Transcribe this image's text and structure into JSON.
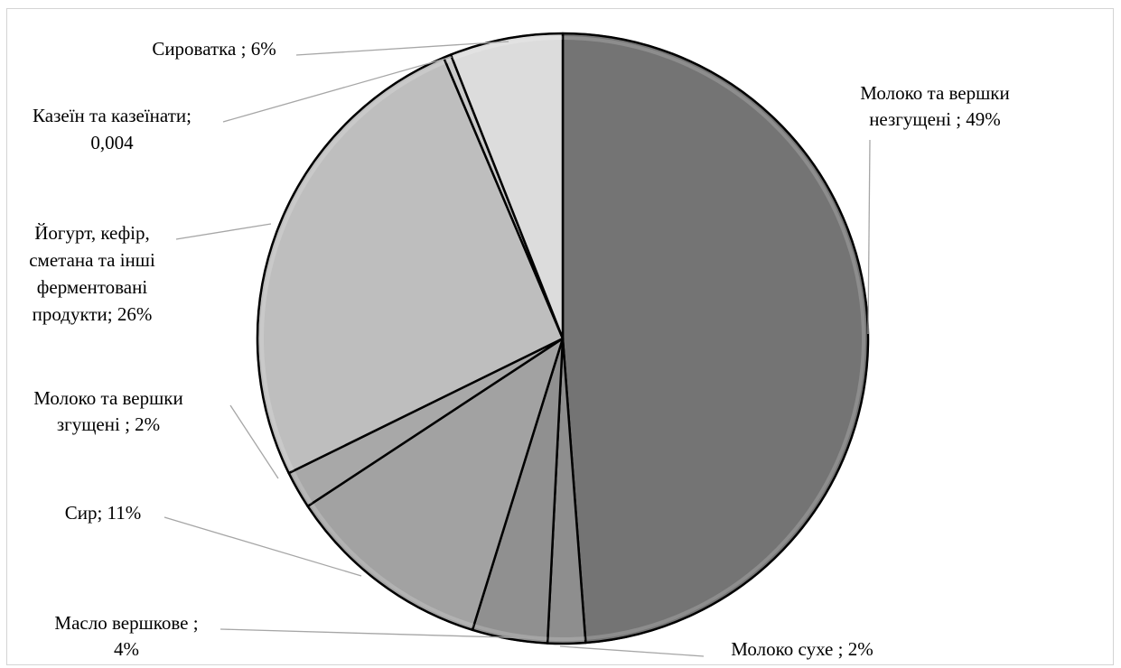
{
  "chart_data": {
    "type": "pie",
    "title": "",
    "series": [
      {
        "name": "",
        "values": [
          49,
          2,
          4,
          11,
          2,
          26,
          0.4,
          6
        ]
      }
    ],
    "slices": [
      {
        "label_lines": [
          "Молоко та вершки",
          "незгущені ; 49%"
        ],
        "value": 49,
        "color": "#747474"
      },
      {
        "label_lines": [
          "Молоко сухе ; 2%"
        ],
        "value": 2,
        "color": "#8e8e8e"
      },
      {
        "label_lines": [
          "Масло вершкове ;",
          "4%"
        ],
        "value": 4,
        "color": "#909090"
      },
      {
        "label_lines": [
          "Сир; 11%"
        ],
        "value": 11,
        "color": "#a2a2a2"
      },
      {
        "label_lines": [
          "Молоко та вершки",
          "згущені ; 2%"
        ],
        "value": 2,
        "color": "#a8a8a8"
      },
      {
        "label_lines": [
          "Йогурт, кефір,",
          "сметана та інші",
          "ферментовані",
          "продукти; 26%"
        ],
        "value": 26,
        "color": "#bebebe"
      },
      {
        "label_lines": [
          "Казеїн та казеїнати;",
          "0,004"
        ],
        "value": 0.4,
        "color": "#c9c9c9"
      },
      {
        "label_lines": [
          "Сироватка ; 6%"
        ],
        "value": 6,
        "color": "#dcdcdc"
      }
    ],
    "legend": "none",
    "start_angle_deg": 0,
    "direction": "clockwise"
  }
}
